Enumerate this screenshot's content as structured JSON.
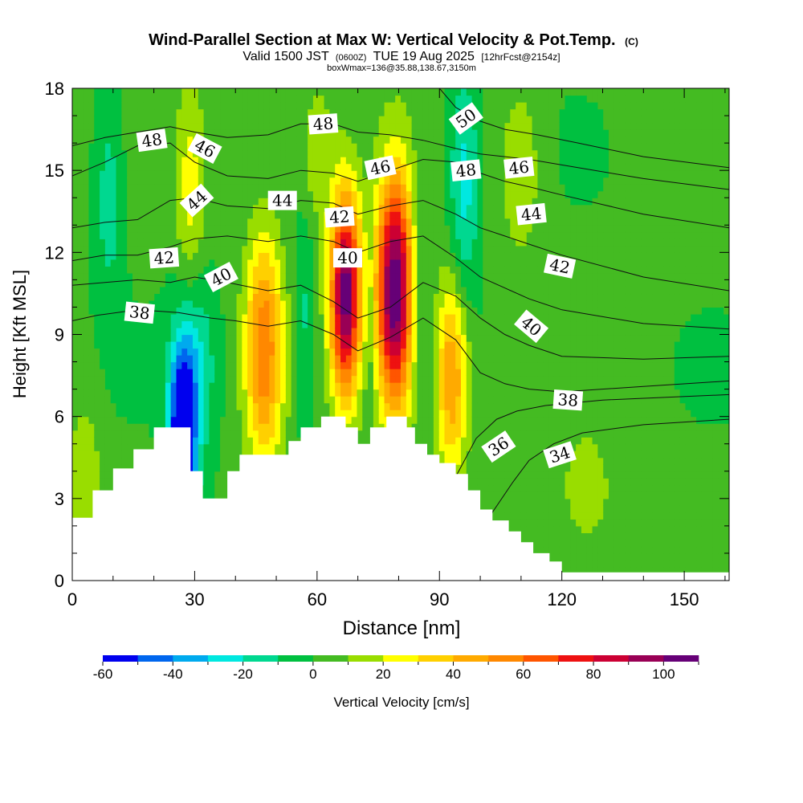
{
  "chart_data": {
    "type": "heatmap",
    "title": "Wind-Parallel Section at Max W: Vertical Velocity & Pot.Temp.",
    "title_mark": "(C)",
    "valid_time": "Valid 1500 JST",
    "valid_utc": "(0600Z)",
    "valid_date": "TUE 19 Aug 2025",
    "forecast_info": "[12hrFcst@2154z]",
    "subtitle_box": "boxWmax=136@35.88,138.67,3150m",
    "xlabel": "Distance [nm]",
    "ylabel": "Height [Kft MSL]",
    "xlim": [
      0,
      161
    ],
    "ylim": [
      0,
      18
    ],
    "x_ticks": [
      0,
      30,
      60,
      90,
      120,
      150
    ],
    "y_ticks": [
      0,
      3,
      6,
      9,
      12,
      15,
      18
    ],
    "colorbar": {
      "label": "Vertical Velocity [cm/s]",
      "levels": [
        -60,
        -50,
        -40,
        -30,
        -20,
        -10,
        0,
        10,
        20,
        30,
        40,
        50,
        60,
        70,
        80,
        90,
        100,
        110
      ],
      "tick_labels": [
        "-60",
        "-40",
        "-20",
        "0",
        "20",
        "40",
        "60",
        "80",
        "100"
      ],
      "colors": [
        "#0000ee",
        "#0066ee",
        "#00aaee",
        "#00e8e0",
        "#00d890",
        "#00c040",
        "#44bb22",
        "#99dd00",
        "#ffff00",
        "#ffd000",
        "#ffaa00",
        "#ff8800",
        "#ff5500",
        "#ee1111",
        "#cc0033",
        "#990055",
        "#660077"
      ]
    },
    "terrain_kft": [
      [
        0,
        2.3
      ],
      [
        5,
        2.3
      ],
      [
        5,
        3.3
      ],
      [
        10,
        3.3
      ],
      [
        10,
        4.1
      ],
      [
        15,
        4.1
      ],
      [
        15,
        4.8
      ],
      [
        20,
        4.8
      ],
      [
        20,
        5.6
      ],
      [
        26,
        5.6
      ],
      [
        26,
        5.6
      ],
      [
        29,
        5.6
      ],
      [
        29,
        4.0
      ],
      [
        32,
        4.0
      ],
      [
        32,
        3.0
      ],
      [
        38,
        3.0
      ],
      [
        38,
        4.0
      ],
      [
        41,
        4.0
      ],
      [
        41,
        4.6
      ],
      [
        50,
        4.6
      ],
      [
        50,
        4.6
      ],
      [
        53,
        4.6
      ],
      [
        53,
        5.1
      ],
      [
        56,
        5.1
      ],
      [
        56,
        5.6
      ],
      [
        61,
        5.6
      ],
      [
        61,
        6.0
      ],
      [
        67,
        6.0
      ],
      [
        67,
        5.6
      ],
      [
        70,
        5.6
      ],
      [
        70,
        5.0
      ],
      [
        73,
        5.0
      ],
      [
        73,
        5.6
      ],
      [
        77,
        5.6
      ],
      [
        77,
        6.0
      ],
      [
        82,
        6.0
      ],
      [
        82,
        5.6
      ],
      [
        84,
        5.6
      ],
      [
        84,
        5.0
      ],
      [
        87,
        5.0
      ],
      [
        87,
        4.6
      ],
      [
        90,
        4.6
      ],
      [
        90,
        4.3
      ],
      [
        94,
        4.3
      ],
      [
        94,
        3.9
      ],
      [
        97,
        3.9
      ],
      [
        97,
        3.3
      ],
      [
        100,
        3.3
      ],
      [
        100,
        2.6
      ],
      [
        103,
        2.6
      ],
      [
        103,
        2.2
      ],
      [
        107,
        2.2
      ],
      [
        107,
        1.8
      ],
      [
        110,
        1.8
      ],
      [
        110,
        1.4
      ],
      [
        113,
        1.4
      ],
      [
        113,
        1.0
      ],
      [
        117,
        1.0
      ],
      [
        117,
        0.7
      ],
      [
        120,
        0.7
      ],
      [
        120,
        0.3
      ],
      [
        161,
        0.3
      ]
    ],
    "vertical_velocity_features": [
      {
        "x": 67,
        "y": 10.5,
        "w_cms": 105,
        "sx": 2.6,
        "sy": 2.6
      },
      {
        "x": 79,
        "y": 10.5,
        "w_cms": 110,
        "sx": 3.2,
        "sy": 3.0
      },
      {
        "x": 47,
        "y": 8.5,
        "w_cms": 55,
        "sx": 3.2,
        "sy": 3.0
      },
      {
        "x": 93,
        "y": 7.5,
        "w_cms": 50,
        "sx": 2.8,
        "sy": 2.5
      },
      {
        "x": 27,
        "y": 5.2,
        "w_cms": -75,
        "sx": 2.3,
        "sy": 2.2
      },
      {
        "x": 30,
        "y": 8.0,
        "w_cms": -25,
        "sx": 3.5,
        "sy": 2.5
      },
      {
        "x": 96,
        "y": 14.5,
        "w_cms": -28,
        "sx": 2.6,
        "sy": 3.0
      },
      {
        "x": 9,
        "y": 14.0,
        "w_cms": -18,
        "sx": 2.5,
        "sy": 2.8
      },
      {
        "x": 57,
        "y": 9.5,
        "w_cms": -15,
        "sx": 1.8,
        "sy": 3.0
      },
      {
        "x": 73,
        "y": 9.0,
        "w_cms": -10,
        "sx": 1.0,
        "sy": 3.0
      },
      {
        "x": 85,
        "y": 11.5,
        "w_cms": -12,
        "sx": 1.5,
        "sy": 2.5
      },
      {
        "x": 29,
        "y": 14.0,
        "w_cms": 22,
        "sx": 2.5,
        "sy": 3.0
      },
      {
        "x": 60,
        "y": 15.5,
        "w_cms": 18,
        "sx": 3.0,
        "sy": 2.0
      },
      {
        "x": 110,
        "y": 15.0,
        "w_cms": 15,
        "sx": 4.0,
        "sy": 2.5
      },
      {
        "x": 3,
        "y": 4.0,
        "w_cms": 15,
        "sx": 3.0,
        "sy": 2.0
      },
      {
        "x": 126,
        "y": 3.0,
        "w_cms": 12,
        "sx": 6.0,
        "sy": 2.0
      }
    ],
    "pot_temp_contours_c": [
      {
        "value": 34,
        "points": [
          [
            96,
            0.3
          ],
          [
            103,
            2.5
          ],
          [
            108,
            3.6
          ],
          [
            112,
            4.4
          ],
          [
            118,
            5.0
          ],
          [
            125,
            5.4
          ],
          [
            140,
            5.7
          ],
          [
            161,
            5.9
          ]
        ]
      },
      {
        "value": 36,
        "points": [
          [
            94,
            3.8
          ],
          [
            99,
            5.2
          ],
          [
            104,
            5.9
          ],
          [
            109,
            6.2
          ],
          [
            116,
            6.4
          ],
          [
            130,
            6.6
          ],
          [
            161,
            6.8
          ]
        ]
      },
      {
        "value": 38,
        "points": [
          [
            0,
            9.5
          ],
          [
            6,
            9.7
          ],
          [
            16,
            9.9
          ],
          [
            26,
            9.8
          ],
          [
            34,
            9.6
          ],
          [
            40,
            9.5
          ],
          [
            48,
            9.3
          ],
          [
            56,
            9.5
          ],
          [
            64,
            9.0
          ],
          [
            70,
            8.4
          ],
          [
            78,
            8.9
          ],
          [
            86,
            9.6
          ],
          [
            94,
            8.8
          ],
          [
            100,
            7.6
          ],
          [
            106,
            7.2
          ],
          [
            112,
            7.0
          ],
          [
            120,
            6.9
          ],
          [
            140,
            7.1
          ],
          [
            161,
            7.3
          ]
        ]
      },
      {
        "value": 40,
        "points": [
          [
            0,
            10.8
          ],
          [
            8,
            10.9
          ],
          [
            16,
            11.0
          ],
          [
            24,
            10.9
          ],
          [
            30,
            11.1
          ],
          [
            38,
            10.9
          ],
          [
            48,
            10.6
          ],
          [
            56,
            10.8
          ],
          [
            64,
            10.2
          ],
          [
            70,
            9.6
          ],
          [
            78,
            10.0
          ],
          [
            86,
            10.9
          ],
          [
            94,
            10.4
          ],
          [
            100,
            9.6
          ],
          [
            106,
            9.0
          ],
          [
            112,
            8.6
          ],
          [
            120,
            8.2
          ],
          [
            140,
            8.1
          ],
          [
            161,
            8.2
          ]
        ]
      },
      {
        "value": 42,
        "points": [
          [
            0,
            11.7
          ],
          [
            8,
            11.9
          ],
          [
            16,
            11.9
          ],
          [
            24,
            12.2
          ],
          [
            30,
            12.5
          ],
          [
            38,
            12.6
          ],
          [
            48,
            12.4
          ],
          [
            56,
            12.6
          ],
          [
            64,
            12.4
          ],
          [
            70,
            12.0
          ],
          [
            78,
            12.4
          ],
          [
            86,
            12.6
          ],
          [
            94,
            11.8
          ],
          [
            100,
            11.1
          ],
          [
            106,
            10.7
          ],
          [
            112,
            10.3
          ],
          [
            120,
            9.9
          ],
          [
            140,
            9.4
          ],
          [
            161,
            9.2
          ]
        ]
      },
      {
        "value": 44,
        "points": [
          [
            0,
            12.9
          ],
          [
            8,
            13.1
          ],
          [
            16,
            13.2
          ],
          [
            24,
            13.9
          ],
          [
            30,
            14.0
          ],
          [
            38,
            13.7
          ],
          [
            48,
            13.6
          ],
          [
            56,
            13.9
          ],
          [
            64,
            13.8
          ],
          [
            70,
            13.4
          ],
          [
            78,
            13.7
          ],
          [
            86,
            13.9
          ],
          [
            94,
            13.4
          ],
          [
            100,
            12.9
          ],
          [
            106,
            12.6
          ],
          [
            112,
            12.3
          ],
          [
            120,
            11.9
          ],
          [
            140,
            11.1
          ],
          [
            161,
            10.6
          ]
        ]
      },
      {
        "value": 46,
        "points": [
          [
            0,
            14.8
          ],
          [
            8,
            15.3
          ],
          [
            16,
            15.9
          ],
          [
            24,
            16.0
          ],
          [
            30,
            15.3
          ],
          [
            38,
            14.8
          ],
          [
            48,
            14.7
          ],
          [
            56,
            15.0
          ],
          [
            64,
            14.9
          ],
          [
            70,
            14.6
          ],
          [
            78,
            15.0
          ],
          [
            86,
            15.4
          ],
          [
            94,
            15.3
          ],
          [
            100,
            14.9
          ],
          [
            106,
            14.6
          ],
          [
            112,
            14.4
          ],
          [
            120,
            14.1
          ],
          [
            140,
            13.4
          ],
          [
            161,
            12.9
          ]
        ]
      },
      {
        "value": 48,
        "points": [
          [
            0,
            15.9
          ],
          [
            8,
            16.2
          ],
          [
            16,
            16.4
          ],
          [
            24,
            16.6
          ],
          [
            30,
            16.4
          ],
          [
            38,
            16.2
          ],
          [
            48,
            16.3
          ],
          [
            56,
            16.7
          ],
          [
            64,
            16.7
          ],
          [
            70,
            16.4
          ],
          [
            78,
            16.3
          ],
          [
            86,
            16.1
          ],
          [
            94,
            15.8
          ],
          [
            100,
            15.6
          ],
          [
            106,
            15.5
          ],
          [
            112,
            15.4
          ],
          [
            120,
            15.2
          ],
          [
            140,
            14.7
          ],
          [
            161,
            14.3
          ]
        ]
      },
      {
        "value": 50,
        "points": [
          [
            90,
            18.0
          ],
          [
            94,
            17.3
          ],
          [
            100,
            16.8
          ],
          [
            106,
            16.5
          ],
          [
            114,
            16.3
          ],
          [
            124,
            16.0
          ],
          [
            140,
            15.5
          ],
          [
            161,
            15.1
          ]
        ]
      }
    ],
    "contour_labels": [
      {
        "text": "48",
        "x": 19.5,
        "y": 16.1,
        "angle": -8
      },
      {
        "text": "46",
        "x": 32.5,
        "y": 15.8,
        "angle": 28
      },
      {
        "text": "44",
        "x": 30.5,
        "y": 13.9,
        "angle": -42
      },
      {
        "text": "42",
        "x": 22.5,
        "y": 11.8,
        "angle": -4
      },
      {
        "text": "40",
        "x": 36.5,
        "y": 11.1,
        "angle": -28
      },
      {
        "text": "38",
        "x": 16.5,
        "y": 9.8,
        "angle": 6
      },
      {
        "text": "44",
        "x": 51.5,
        "y": 13.9,
        "angle": 0
      },
      {
        "text": "48",
        "x": 61.5,
        "y": 16.7,
        "angle": -4
      },
      {
        "text": "46",
        "x": 75.5,
        "y": 15.1,
        "angle": -12
      },
      {
        "text": "42",
        "x": 65.5,
        "y": 13.3,
        "angle": -4
      },
      {
        "text": "40",
        "x": 67.5,
        "y": 11.8,
        "angle": 0
      },
      {
        "text": "50",
        "x": 96.5,
        "y": 16.9,
        "angle": -36
      },
      {
        "text": "48",
        "x": 96.5,
        "y": 15.0,
        "angle": -6
      },
      {
        "text": "46",
        "x": 109.5,
        "y": 15.1,
        "angle": -6
      },
      {
        "text": "44",
        "x": 112.5,
        "y": 13.4,
        "angle": -6
      },
      {
        "text": "42",
        "x": 119.5,
        "y": 11.5,
        "angle": 12
      },
      {
        "text": "40",
        "x": 112.5,
        "y": 9.3,
        "angle": 40
      },
      {
        "text": "38",
        "x": 121.5,
        "y": 6.6,
        "angle": 4
      },
      {
        "text": "36",
        "x": 104.5,
        "y": 4.9,
        "angle": -34
      },
      {
        "text": "34",
        "x": 119.5,
        "y": 4.6,
        "angle": -18
      }
    ]
  }
}
